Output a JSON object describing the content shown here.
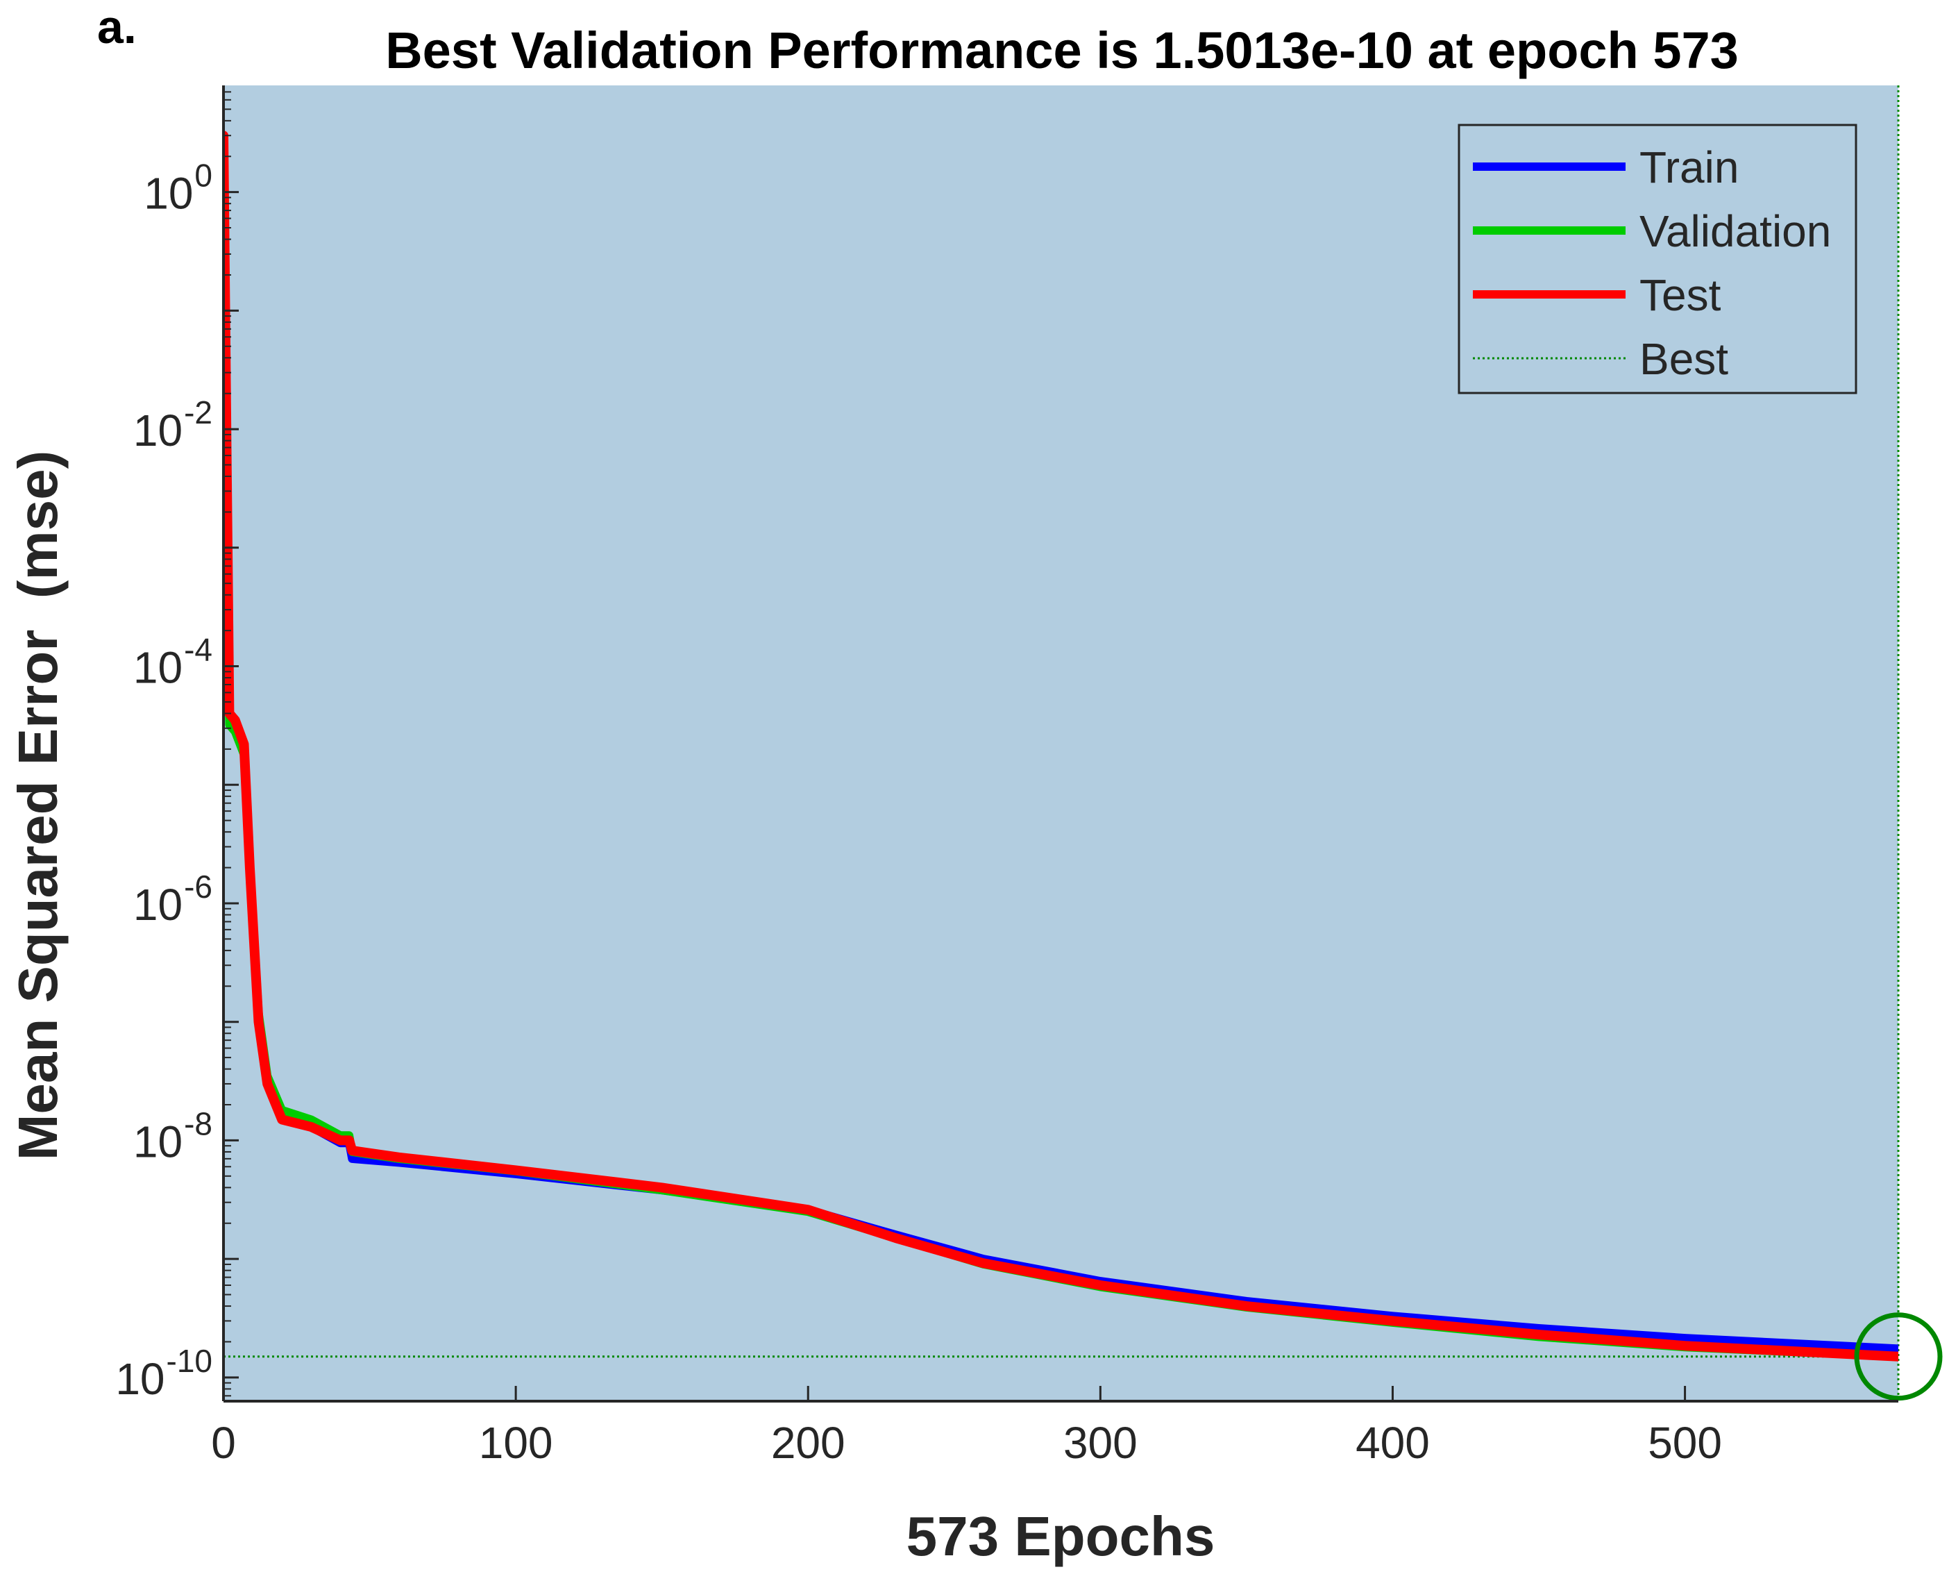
{
  "panel_label": "a.",
  "chart_data": {
    "type": "line",
    "title": "Best Validation Performance is 1.5013e-10 at epoch 573",
    "xlabel": "573 Epochs",
    "ylabel": "Mean Squared Error  (mse)",
    "xlim": [
      0,
      573
    ],
    "ylim_log10": [
      -10.2,
      0.9
    ],
    "yscale": "log",
    "x_ticks": [
      0,
      100,
      200,
      300,
      400,
      500
    ],
    "y_ticks": [
      {
        "exp": 0,
        "base": "10",
        "power": "0"
      },
      {
        "exp": -2,
        "base": "10",
        "power": "-2"
      },
      {
        "exp": -4,
        "base": "10",
        "power": "-4"
      },
      {
        "exp": -6,
        "base": "10",
        "power": "-6"
      },
      {
        "exp": -8,
        "base": "10",
        "power": "-8"
      },
      {
        "exp": -10,
        "base": "10",
        "power": "-10"
      }
    ],
    "legend": {
      "position": "top-right",
      "entries": [
        {
          "label": "Train",
          "color": "#0000ff",
          "style": "solid"
        },
        {
          "label": "Validation",
          "color": "#00cc00",
          "style": "solid"
        },
        {
          "label": "Test",
          "color": "#ff0000",
          "style": "solid"
        },
        {
          "label": "Best",
          "color": "#008800",
          "style": "dotted"
        }
      ]
    },
    "best": {
      "epoch": 573,
      "value": 1.5013e-10,
      "color": "#008800"
    },
    "background_color": "#b2cde0",
    "series": [
      {
        "name": "Train",
        "color": "#0000ff",
        "x": [
          0,
          1,
          2,
          4,
          7,
          9,
          12,
          15,
          20,
          30,
          40,
          43,
          44,
          60,
          100,
          150,
          200,
          230,
          260,
          300,
          350,
          400,
          450,
          500,
          573
        ],
        "y": [
          3,
          0.01,
          4e-05,
          3.2e-05,
          2e-05,
          2e-06,
          1e-07,
          3e-08,
          1.5e-08,
          1.3e-08,
          9.5e-09,
          9.5e-09,
          7e-09,
          6.5e-09,
          5.2e-09,
          3.8e-09,
          2.6e-09,
          1.6e-09,
          1e-09,
          6.5e-10,
          4.4e-10,
          3.3e-10,
          2.6e-10,
          2.15e-10,
          1.75e-10
        ]
      },
      {
        "name": "Validation",
        "color": "#00cc00",
        "x": [
          0,
          1,
          2,
          4,
          7,
          9,
          12,
          15,
          20,
          30,
          40,
          43,
          44,
          60,
          100,
          150,
          200,
          230,
          260,
          300,
          350,
          400,
          450,
          500,
          573
        ],
        "y": [
          3,
          0.01,
          3.2e-05,
          2.8e-05,
          1.8e-05,
          2.2e-06,
          1.2e-07,
          3.5e-08,
          1.8e-08,
          1.5e-08,
          1.1e-08,
          1.1e-08,
          8e-09,
          7e-09,
          5.5e-09,
          3.8e-09,
          2.5e-09,
          1.5e-09,
          9e-10,
          5.8e-10,
          3.9e-10,
          2.9e-10,
          2.2e-10,
          1.8e-10,
          1.5013e-10
        ]
      },
      {
        "name": "Test",
        "color": "#ff0000",
        "x": [
          0,
          1,
          2,
          4,
          7,
          9,
          12,
          15,
          20,
          30,
          40,
          43,
          44,
          60,
          100,
          150,
          200,
          230,
          260,
          300,
          350,
          400,
          450,
          500,
          573
        ],
        "y": [
          3,
          0.01,
          4e-05,
          3.5e-05,
          2.2e-05,
          2e-06,
          1e-07,
          3e-08,
          1.5e-08,
          1.3e-08,
          1e-08,
          1e-08,
          8.2e-09,
          7.2e-09,
          5.6e-09,
          4e-09,
          2.6e-09,
          1.5e-09,
          9.2e-10,
          6e-10,
          4e-10,
          3e-10,
          2.3e-10,
          1.85e-10,
          1.5e-10
        ]
      }
    ]
  }
}
